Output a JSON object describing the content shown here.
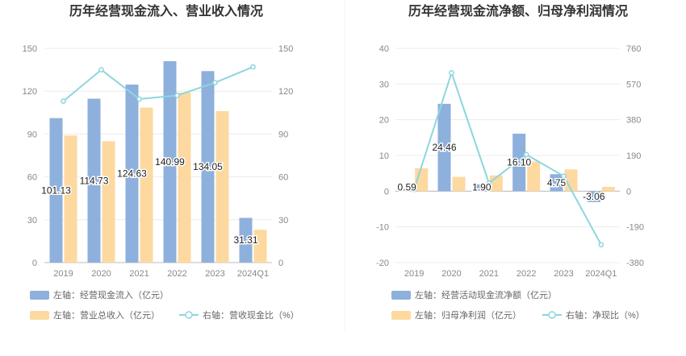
{
  "chart_data": [
    {
      "type": "bar",
      "title": "历年经营现金流入、营业收入情况",
      "categories": [
        "2019",
        "2020",
        "2021",
        "2022",
        "2023",
        "2024Q1"
      ],
      "left_axis": {
        "ticks": [
          "0",
          "30",
          "60",
          "90",
          "120",
          "150"
        ],
        "ylim": [
          0,
          150
        ]
      },
      "right_axis": {
        "ticks": [
          "0",
          "30",
          "60",
          "90",
          "120",
          "150"
        ],
        "ylim": [
          0,
          150
        ]
      },
      "grid": true,
      "legend_position": "bottom-left",
      "series": [
        {
          "name": "左轴：经营现金流入（亿元）",
          "type": "bar",
          "axis": "left",
          "color": "#8eb0dc",
          "values": [
            101.13,
            114.73,
            124.63,
            140.99,
            134.05,
            31.31
          ],
          "labels": [
            "101.13",
            "114.73",
            "124.63",
            "140.99",
            "134.05",
            "31.31"
          ]
        },
        {
          "name": "左轴：营业总收入（亿元）",
          "type": "bar",
          "axis": "left",
          "color": "#fdd9a0",
          "values": [
            89,
            85,
            108.5,
            119,
            106,
            23
          ]
        },
        {
          "name": "右轴：营收现金比（%）",
          "type": "line",
          "axis": "right",
          "color": "#8dd6de",
          "values": [
            113,
            135,
            114.5,
            117,
            126,
            137
          ]
        }
      ]
    },
    {
      "type": "bar",
      "title": "历年经营现金流净额、归母净利润情况",
      "categories": [
        "2019",
        "2020",
        "2021",
        "2022",
        "2023",
        "2024Q1"
      ],
      "left_axis": {
        "ticks": [
          "-20",
          "-10",
          "0",
          "10",
          "20",
          "30",
          "40"
        ],
        "ylim": [
          -20,
          40
        ]
      },
      "right_axis": {
        "ticks": [
          "-380",
          "-190",
          "0",
          "190",
          "380",
          "570",
          "760"
        ],
        "ylim": [
          -380,
          760
        ]
      },
      "grid": true,
      "legend_position": "bottom-left",
      "series": [
        {
          "name": "左轴：经营活动现金流净额（亿元）",
          "type": "bar",
          "axis": "left",
          "color": "#8eb0dc",
          "values": [
            0.59,
            24.46,
            1.9,
            16.1,
            4.75,
            -3.06
          ],
          "labels": [
            "0.59",
            "24.46",
            "1.90",
            "16.10",
            "4.75",
            "-3.06"
          ]
        },
        {
          "name": "左轴：归母净利润（亿元）",
          "type": "bar",
          "axis": "left",
          "color": "#fdd9a0",
          "values": [
            6.4,
            4.0,
            4.4,
            8.3,
            6.1,
            1.2
          ]
        },
        {
          "name": "右轴：净现比（%）",
          "type": "line",
          "axis": "right",
          "color": "#8dd6de",
          "values": [
            9,
            630,
            43,
            195,
            80,
            -285
          ]
        }
      ]
    }
  ]
}
